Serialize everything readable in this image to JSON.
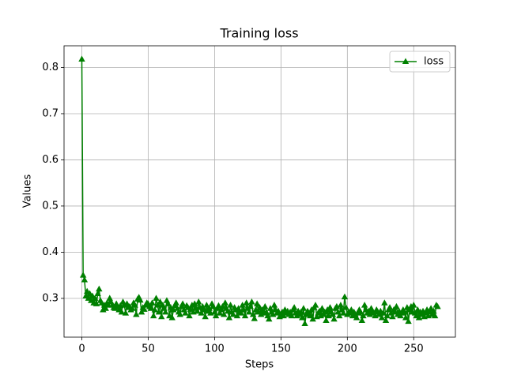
{
  "chart_data": {
    "type": "line",
    "title": "Training loss",
    "x_label": "Steps",
    "y_label": "Values",
    "x": [
      0,
      1,
      2,
      3,
      4,
      5,
      6,
      7,
      8,
      9,
      10,
      11,
      12,
      13,
      14,
      15,
      16,
      17,
      18,
      19,
      20,
      21,
      22,
      23,
      24,
      25,
      26,
      27,
      28,
      29,
      30,
      31,
      32,
      33,
      34,
      35,
      36,
      37,
      38,
      39,
      40,
      41,
      42,
      43,
      44,
      45,
      46,
      47,
      48,
      49,
      50,
      51,
      52,
      53,
      54,
      55,
      56,
      57,
      58,
      59,
      60,
      61,
      62,
      63,
      64,
      65,
      66,
      67,
      68,
      69,
      70,
      71,
      72,
      73,
      74,
      75,
      76,
      77,
      78,
      79,
      80,
      81,
      82,
      83,
      84,
      85,
      86,
      87,
      88,
      89,
      90,
      91,
      92,
      93,
      94,
      95,
      96,
      97,
      98,
      99,
      100,
      101,
      102,
      103,
      104,
      105,
      106,
      107,
      108,
      109,
      110,
      111,
      112,
      113,
      114,
      115,
      116,
      117,
      118,
      119,
      120,
      121,
      122,
      123,
      124,
      125,
      126,
      127,
      128,
      129,
      130,
      131,
      132,
      133,
      134,
      135,
      136,
      137,
      138,
      139,
      140,
      141,
      142,
      143,
      144,
      145,
      146,
      147,
      148,
      149,
      150,
      151,
      152,
      153,
      154,
      155,
      156,
      157,
      158,
      159,
      160,
      161,
      162,
      163,
      164,
      165,
      166,
      167,
      168,
      169,
      170,
      171,
      172,
      173,
      174,
      175,
      176,
      177,
      178,
      179,
      180,
      181,
      182,
      183,
      184,
      185,
      186,
      187,
      188,
      189,
      190,
      191,
      192,
      193,
      194,
      195,
      196,
      197,
      198,
      199,
      200,
      201,
      202,
      203,
      204,
      205,
      206,
      207,
      208,
      209,
      210,
      211,
      212,
      213,
      214,
      215,
      216,
      217,
      218,
      219,
      220,
      221,
      222,
      223,
      224,
      225,
      226,
      227,
      228,
      229,
      230,
      231,
      232,
      233,
      234,
      235,
      236,
      237,
      238,
      239,
      240,
      241,
      242,
      243,
      244,
      245,
      246,
      247,
      248,
      249,
      250,
      251,
      252,
      253,
      254,
      255,
      256,
      257,
      258,
      259,
      260,
      261,
      262,
      263,
      264,
      265,
      266,
      267,
      268
    ],
    "series": [
      {
        "name": "loss",
        "color": "#008000",
        "marker": "triangle",
        "values": [
          0.818,
          0.35,
          0.34,
          0.305,
          0.315,
          0.3,
          0.31,
          0.295,
          0.305,
          0.29,
          0.3,
          0.288,
          0.31,
          0.32,
          0.295,
          0.29,
          0.275,
          0.285,
          0.278,
          0.29,
          0.285,
          0.3,
          0.292,
          0.285,
          0.28,
          0.278,
          0.288,
          0.282,
          0.275,
          0.284,
          0.27,
          0.292,
          0.285,
          0.268,
          0.288,
          0.28,
          0.282,
          0.275,
          0.278,
          0.29,
          0.285,
          0.265,
          0.298,
          0.302,
          0.296,
          0.27,
          0.28,
          0.276,
          0.285,
          0.29,
          0.288,
          0.282,
          0.278,
          0.29,
          0.262,
          0.275,
          0.3,
          0.285,
          0.27,
          0.292,
          0.26,
          0.285,
          0.278,
          0.27,
          0.295,
          0.288,
          0.262,
          0.28,
          0.258,
          0.275,
          0.284,
          0.29,
          0.278,
          0.27,
          0.265,
          0.282,
          0.288,
          0.275,
          0.268,
          0.284,
          0.28,
          0.262,
          0.276,
          0.285,
          0.27,
          0.288,
          0.278,
          0.272,
          0.292,
          0.28,
          0.268,
          0.282,
          0.275,
          0.26,
          0.285,
          0.272,
          0.278,
          0.268,
          0.288,
          0.282,
          0.27,
          0.262,
          0.278,
          0.284,
          0.268,
          0.275,
          0.282,
          0.265,
          0.29,
          0.278,
          0.272,
          0.258,
          0.285,
          0.27,
          0.265,
          0.28,
          0.275,
          0.262,
          0.278,
          0.27,
          0.268,
          0.285,
          0.275,
          0.262,
          0.29,
          0.278,
          0.27,
          0.282,
          0.292,
          0.265,
          0.256,
          0.275,
          0.288,
          0.27,
          0.28,
          0.265,
          0.275,
          0.268,
          0.282,
          0.27,
          0.262,
          0.255,
          0.278,
          0.27,
          0.265,
          0.285,
          0.275,
          0.268,
          0.272,
          0.26,
          0.265,
          0.27,
          0.262,
          0.275,
          0.268,
          0.272,
          0.265,
          0.27,
          0.262,
          0.275,
          0.28,
          0.268,
          0.262,
          0.272,
          0.265,
          0.27,
          0.258,
          0.278,
          0.245,
          0.265,
          0.272,
          0.268,
          0.262,
          0.275,
          0.255,
          0.28,
          0.285,
          0.26,
          0.268,
          0.272,
          0.262,
          0.278,
          0.265,
          0.27,
          0.252,
          0.275,
          0.262,
          0.28,
          0.27,
          0.265,
          0.255,
          0.278,
          0.282,
          0.27,
          0.262,
          0.285,
          0.275,
          0.268,
          0.303,
          0.28,
          0.265,
          0.27,
          0.268,
          0.275,
          0.262,
          0.27,
          0.265,
          0.258,
          0.268,
          0.275,
          0.27,
          0.252,
          0.262,
          0.285,
          0.275,
          0.268,
          0.272,
          0.265,
          0.278,
          0.27,
          0.268,
          0.262,
          0.275,
          0.27,
          0.265,
          0.272,
          0.258,
          0.268,
          0.29,
          0.252,
          0.262,
          0.275,
          0.28,
          0.268,
          0.26,
          0.275,
          0.27,
          0.282,
          0.265,
          0.272,
          0.262,
          0.268,
          0.275,
          0.27,
          0.258,
          0.28,
          0.25,
          0.275,
          0.282,
          0.27,
          0.285,
          0.268,
          0.262,
          0.275,
          0.258,
          0.27,
          0.265,
          0.272,
          0.26,
          0.268,
          0.275,
          0.262,
          0.27,
          0.278,
          0.265,
          0.272,
          0.262,
          0.285,
          0.282
        ]
      }
    ],
    "xlim": [
      -13.4,
      281.4
    ],
    "ylim": [
      0.216,
      0.847
    ],
    "xticks": [
      0,
      50,
      100,
      150,
      200,
      250
    ],
    "yticks": [
      0.3,
      0.4,
      0.5,
      0.6,
      0.7,
      0.8
    ],
    "grid": true,
    "legend": "upper right"
  }
}
